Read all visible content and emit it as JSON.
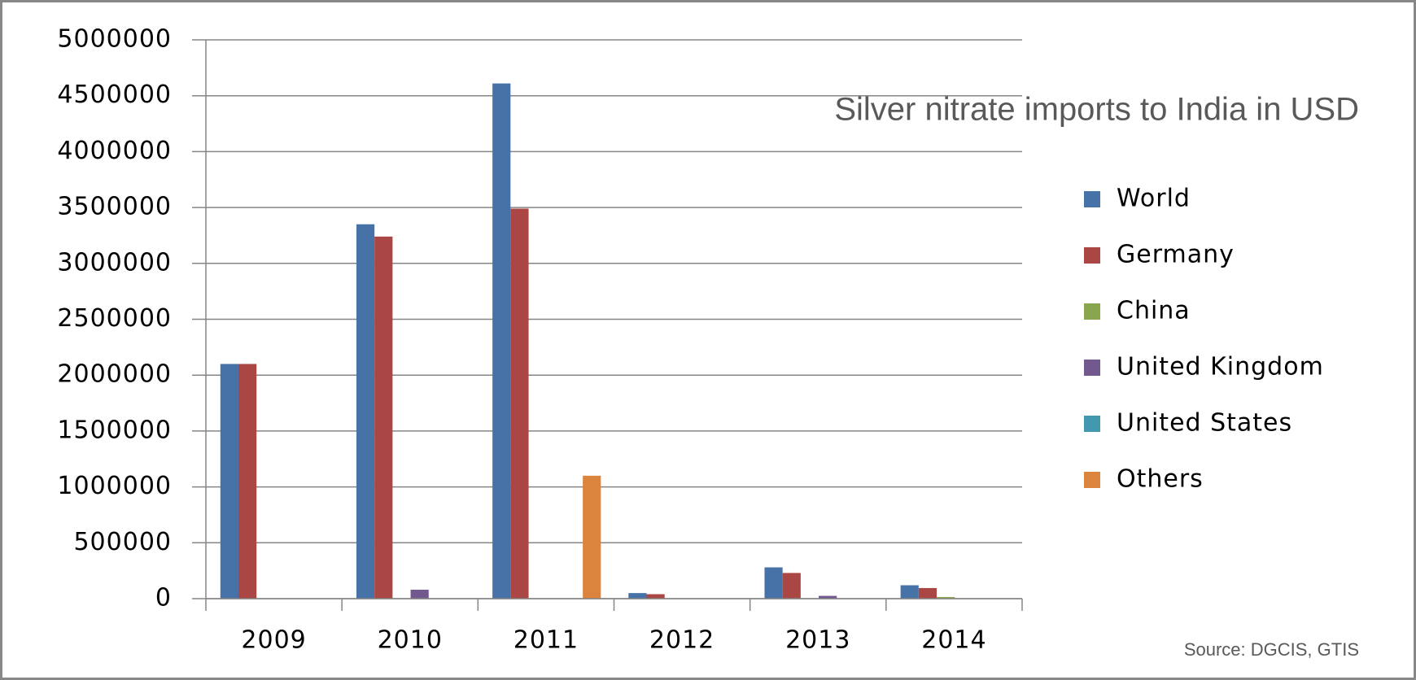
{
  "chart_data": {
    "type": "bar",
    "title": "Silver nitrate imports to India in USD",
    "source": "Source: DGCIS, GTIS",
    "categories": [
      "2009",
      "2010",
      "2011",
      "2012",
      "2013",
      "2014"
    ],
    "series": [
      {
        "name": "World",
        "color": "#4672a8",
        "values": [
          2100000,
          3350000,
          4610000,
          50000,
          280000,
          120000
        ]
      },
      {
        "name": "Germany",
        "color": "#aa4643",
        "values": [
          2100000,
          3240000,
          3490000,
          40000,
          230000,
          95000
        ]
      },
      {
        "name": "China",
        "color": "#89a54e",
        "values": [
          0,
          0,
          0,
          0,
          0,
          15000
        ]
      },
      {
        "name": "United Kingdom",
        "color": "#71588f",
        "values": [
          0,
          80000,
          0,
          0,
          25000,
          0
        ]
      },
      {
        "name": "United States",
        "color": "#4198af",
        "values": [
          0,
          0,
          0,
          0,
          0,
          0
        ]
      },
      {
        "name": "Others",
        "color": "#db843d",
        "values": [
          0,
          0,
          1100000,
          0,
          0,
          0
        ]
      }
    ],
    "ylim": [
      0,
      5000000
    ],
    "yticks": [
      0,
      500000,
      1000000,
      1500000,
      2000000,
      2500000,
      3000000,
      3500000,
      4000000,
      4500000,
      5000000
    ],
    "grid": true,
    "legend": "right"
  }
}
